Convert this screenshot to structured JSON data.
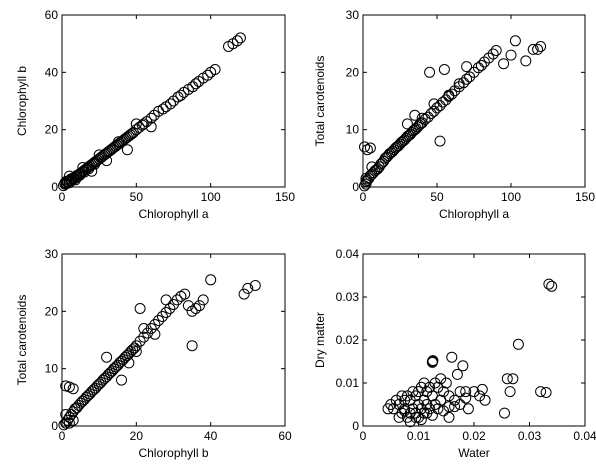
{
  "chart_data": [
    {
      "type": "scatter",
      "xlabel": "Chlorophyll a",
      "ylabel": "Chlorophyll b",
      "xlim": [
        0,
        150
      ],
      "ylim": [
        0,
        60
      ],
      "xticks": [
        "0",
        "50",
        "100",
        "150"
      ],
      "yticks": [
        "0",
        "20",
        "40",
        "60"
      ],
      "grid": false,
      "series": [
        {
          "marker": "open-circle",
          "x": [
            1,
            2,
            2,
            3,
            3,
            4,
            5,
            5,
            6,
            6,
            7,
            8,
            8,
            9,
            10,
            10,
            11,
            12,
            12,
            13,
            14,
            15,
            15,
            16,
            17,
            18,
            18,
            19,
            20,
            21,
            22,
            22,
            23,
            24,
            25,
            26,
            27,
            28,
            29,
            30,
            31,
            32,
            33,
            34,
            35,
            36,
            37,
            38,
            39,
            40,
            41,
            42,
            43,
            44,
            45,
            46,
            47,
            48,
            50,
            52,
            54,
            55,
            57,
            60,
            62,
            65,
            68,
            70,
            73,
            75,
            78,
            80,
            82,
            85,
            88,
            90,
            92,
            95,
            98,
            100,
            103,
            112,
            115,
            118,
            120,
            5,
            9,
            14,
            20,
            25,
            30,
            38,
            44,
            50,
            60
          ],
          "y": [
            0.5,
            1,
            1.5,
            1.2,
            2,
            1.8,
            2.2,
            1.5,
            2.8,
            2.2,
            3,
            3.2,
            2.8,
            3.6,
            4,
            3.4,
            4.2,
            4.6,
            4.1,
            5,
            5.4,
            5.8,
            5.2,
            6.2,
            6.6,
            7,
            6.4,
            7.4,
            7.8,
            8.2,
            8.6,
            8,
            9,
            9.4,
            9.8,
            10.2,
            10.6,
            11,
            11.4,
            11.8,
            12.2,
            12.6,
            13,
            13.4,
            13.8,
            14.2,
            14.6,
            15,
            15.4,
            15.8,
            16.2,
            16.6,
            17,
            17.4,
            17.8,
            18.2,
            18.6,
            19,
            20,
            20.8,
            21.6,
            22,
            22.8,
            24,
            25,
            26.4,
            27.2,
            28,
            29,
            30,
            31.4,
            32,
            33,
            34,
            35,
            36,
            36.8,
            38,
            39,
            40,
            41,
            49,
            50,
            51,
            52,
            3.8,
            2.5,
            6.8,
            5.5,
            11.2,
            9.2,
            15.8,
            13,
            22,
            21
          ]
        }
      ]
    },
    {
      "type": "scatter",
      "xlabel": "Chlorophyll a",
      "ylabel": "Total carotenoids",
      "xlim": [
        0,
        150
      ],
      "ylim": [
        0,
        30
      ],
      "xticks": [
        "0",
        "50",
        "100",
        "150"
      ],
      "yticks": [
        "0",
        "10",
        "20",
        "30"
      ],
      "grid": false,
      "series": [
        {
          "marker": "open-circle",
          "x": [
            1,
            1,
            2,
            2,
            3,
            3,
            4,
            5,
            5,
            6,
            7,
            8,
            9,
            10,
            11,
            12,
            13,
            14,
            15,
            16,
            17,
            18,
            19,
            20,
            21,
            22,
            23,
            24,
            25,
            26,
            27,
            28,
            29,
            30,
            31,
            32,
            33,
            34,
            35,
            36,
            37,
            38,
            39,
            40,
            42,
            44,
            46,
            48,
            50,
            52,
            54,
            56,
            58,
            60,
            62,
            65,
            68,
            70,
            72,
            75,
            78,
            80,
            82,
            85,
            88,
            90,
            95,
            100,
            103,
            110,
            115,
            118,
            120,
            2,
            6,
            45,
            48,
            52,
            55,
            58,
            40,
            65,
            70,
            30,
            35
          ],
          "y": [
            0.2,
            7,
            0.5,
            1,
            1.2,
            6.5,
            1.5,
            2,
            6.8,
            2.2,
            2.5,
            2.8,
            3,
            3.2,
            3.5,
            4,
            4.2,
            4.5,
            5,
            5.2,
            5.5,
            5.8,
            6,
            6.2,
            6.5,
            6.8,
            7,
            7.2,
            7.5,
            7.8,
            8,
            8.2,
            8.5,
            8.8,
            9,
            9.2,
            9.5,
            9.8,
            10,
            10.2,
            10.5,
            10.8,
            11,
            11.2,
            11.8,
            12.2,
            12.8,
            13.2,
            13.8,
            14.2,
            14.8,
            15.2,
            15.8,
            16.2,
            16.8,
            17.5,
            18.2,
            18.8,
            19.2,
            20,
            20.8,
            21.2,
            21.8,
            22.5,
            23.2,
            23.8,
            21.5,
            23,
            25.5,
            22,
            24,
            24,
            24.5,
            1.5,
            3.5,
            20,
            14.5,
            8,
            20.5,
            16,
            12,
            18,
            21,
            11,
            12.5
          ]
        }
      ]
    },
    {
      "type": "scatter",
      "xlabel": "Chlorophyll b",
      "ylabel": "Total carotenoids",
      "xlim": [
        0,
        60
      ],
      "ylim": [
        0,
        30
      ],
      "xticks": [
        "0",
        "20",
        "40",
        "60"
      ],
      "yticks": [
        "0",
        "10",
        "20",
        "30"
      ],
      "grid": false,
      "series": [
        {
          "marker": "open-circle",
          "x": [
            0.5,
            1,
            1,
            1.5,
            2,
            2,
            2.5,
            3,
            3,
            3.5,
            4,
            4.5,
            5,
            5.5,
            6,
            6.5,
            7,
            7.5,
            8,
            8.5,
            9,
            9.5,
            10,
            10.5,
            11,
            11.5,
            12,
            12.5,
            13,
            13.5,
            14,
            14.5,
            15,
            15.5,
            16,
            16.5,
            17,
            17.5,
            18,
            18.5,
            19,
            19.5,
            20,
            21,
            22,
            23,
            24,
            25,
            26,
            27,
            28,
            29,
            30,
            31,
            32,
            33,
            34,
            35,
            36,
            37,
            38,
            40,
            49,
            50,
            52,
            1,
            2,
            3,
            21,
            22,
            35,
            25,
            28,
            12,
            14,
            16,
            18,
            20
          ],
          "y": [
            0.2,
            0.5,
            7,
            1,
            1.5,
            6.8,
            2,
            2.5,
            6.5,
            3,
            3.2,
            3.6,
            4,
            4.3,
            4.6,
            5,
            5.3,
            5.6,
            6,
            6.3,
            6.6,
            7,
            7.3,
            7.6,
            8,
            8.3,
            8.6,
            9,
            9.3,
            9.6,
            10,
            10.3,
            10.6,
            11,
            11.3,
            11.6,
            12,
            12.3,
            12.6,
            13,
            13.3,
            13.6,
            14,
            14.8,
            15.5,
            16.2,
            17,
            17.7,
            18.4,
            19.1,
            19.8,
            20.5,
            21.2,
            22,
            22.6,
            23,
            21,
            20,
            20.5,
            21,
            22,
            25.5,
            23,
            24,
            24.5,
            2,
            0.5,
            1,
            20.5,
            17,
            14,
            16,
            22,
            12,
            10,
            8,
            11,
            13
          ]
        }
      ]
    },
    {
      "type": "scatter",
      "xlabel": "Water",
      "ylabel": "Dry matter",
      "xlim": [
        0,
        0.04
      ],
      "ylim": [
        0,
        0.04
      ],
      "xticks": [
        "0",
        "0.01",
        "0.02",
        "0.03",
        "0.04"
      ],
      "yticks": [
        "0",
        "0.01",
        "0.02",
        "0.03",
        "0.04"
      ],
      "grid": false,
      "series": [
        {
          "marker": "open-circle",
          "x": [
            0.0045,
            0.005,
            0.0055,
            0.006,
            0.0065,
            0.007,
            0.007,
            0.0075,
            0.0075,
            0.008,
            0.008,
            0.0085,
            0.0085,
            0.009,
            0.009,
            0.0095,
            0.0095,
            0.01,
            0.01,
            0.01,
            0.0105,
            0.0105,
            0.011,
            0.011,
            0.011,
            0.0115,
            0.0115,
            0.012,
            0.012,
            0.0125,
            0.0125,
            0.013,
            0.013,
            0.0135,
            0.014,
            0.014,
            0.0145,
            0.015,
            0.0155,
            0.016,
            0.0165,
            0.017,
            0.0175,
            0.018,
            0.0185,
            0.019,
            0.02,
            0.021,
            0.022,
            0.026,
            0.0265,
            0.027,
            0.028,
            0.032,
            0.033,
            0.0335,
            0.034,
            0.0065,
            0.0085,
            0.0105,
            0.0125,
            0.0145,
            0.0165,
            0.0075,
            0.0095,
            0.0115,
            0.0135,
            0.0155,
            0.0175,
            0.0125,
            0.0126,
            0.0155,
            0.0185,
            0.0215,
            0.0255
          ],
          "y": [
            0.004,
            0.005,
            0.004,
            0.006,
            0.005,
            0.007,
            0.003,
            0.006,
            0.004,
            0.007,
            0.002,
            0.006,
            0.003,
            0.008,
            0.004,
            0.007,
            0.003,
            0.008,
            0.005,
            0.002,
            0.009,
            0.004,
            0.01,
            0.006,
            0.003,
            0.008,
            0.005,
            0.009,
            0.004,
            0.015,
            0.007,
            0.01,
            0.005,
            0.009,
            0.011,
            0.006,
            0.008,
            0.01,
            0.007,
            0.016,
            0.006,
            0.012,
            0.008,
            0.014,
            0.008,
            0.004,
            0.008,
            0.007,
            0.006,
            0.011,
            0.008,
            0.011,
            0.019,
            0.008,
            0.0078,
            0.033,
            0.0325,
            0.002,
            0.001,
            0.0015,
            0.0025,
            0.0035,
            0.0045,
            0.0035,
            0.002,
            0.003,
            0.004,
            0.002,
            0.005,
            0.0148,
            0.0152,
            0.0045,
            0.0065,
            0.0085,
            0.003
          ]
        }
      ]
    }
  ]
}
